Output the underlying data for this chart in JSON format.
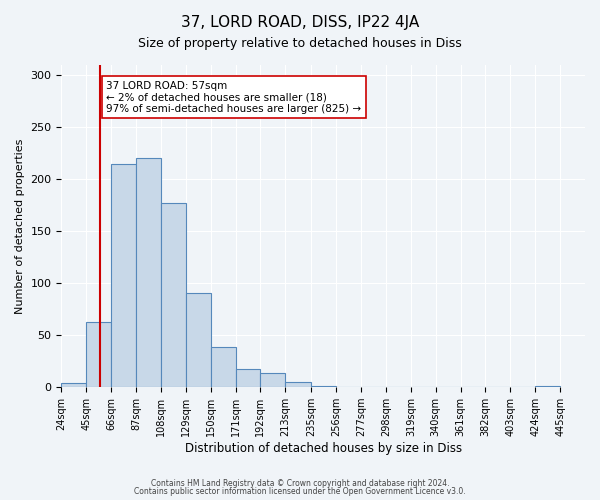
{
  "title": "37, LORD ROAD, DISS, IP22 4JA",
  "subtitle": "Size of property relative to detached houses in Diss",
  "xlabel": "Distribution of detached houses by size in Diss",
  "ylabel": "Number of detached properties",
  "bin_labels": [
    "24sqm",
    "45sqm",
    "66sqm",
    "87sqm",
    "108sqm",
    "129sqm",
    "150sqm",
    "171sqm",
    "192sqm",
    "213sqm",
    "235sqm",
    "256sqm",
    "277sqm",
    "298sqm",
    "319sqm",
    "340sqm",
    "361sqm",
    "382sqm",
    "403sqm",
    "424sqm",
    "445sqm"
  ],
  "bin_edges": [
    24,
    45,
    66,
    87,
    108,
    129,
    150,
    171,
    192,
    213,
    235,
    256,
    277,
    298,
    319,
    340,
    361,
    382,
    403,
    424,
    445
  ],
  "bar_values": [
    4,
    63,
    215,
    221,
    177,
    91,
    39,
    18,
    14,
    5,
    1,
    0,
    0,
    0,
    0,
    0,
    0,
    0,
    0,
    1
  ],
  "bar_color": "#c8d8e8",
  "bar_edge_color": "#5588bb",
  "vline_x": 57,
  "vline_color": "#cc0000",
  "ylim": [
    0,
    310
  ],
  "yticks": [
    0,
    50,
    100,
    150,
    200,
    250,
    300
  ],
  "annotation_text": "37 LORD ROAD: 57sqm\n← 2% of detached houses are smaller (18)\n97% of semi-detached houses are larger (825) →",
  "annotation_box_color": "#ffffff",
  "annotation_box_edge": "#cc0000",
  "footer1": "Contains HM Land Registry data © Crown copyright and database right 2024.",
  "footer2": "Contains public sector information licensed under the Open Government Licence v3.0.",
  "background_color": "#f0f4f8"
}
